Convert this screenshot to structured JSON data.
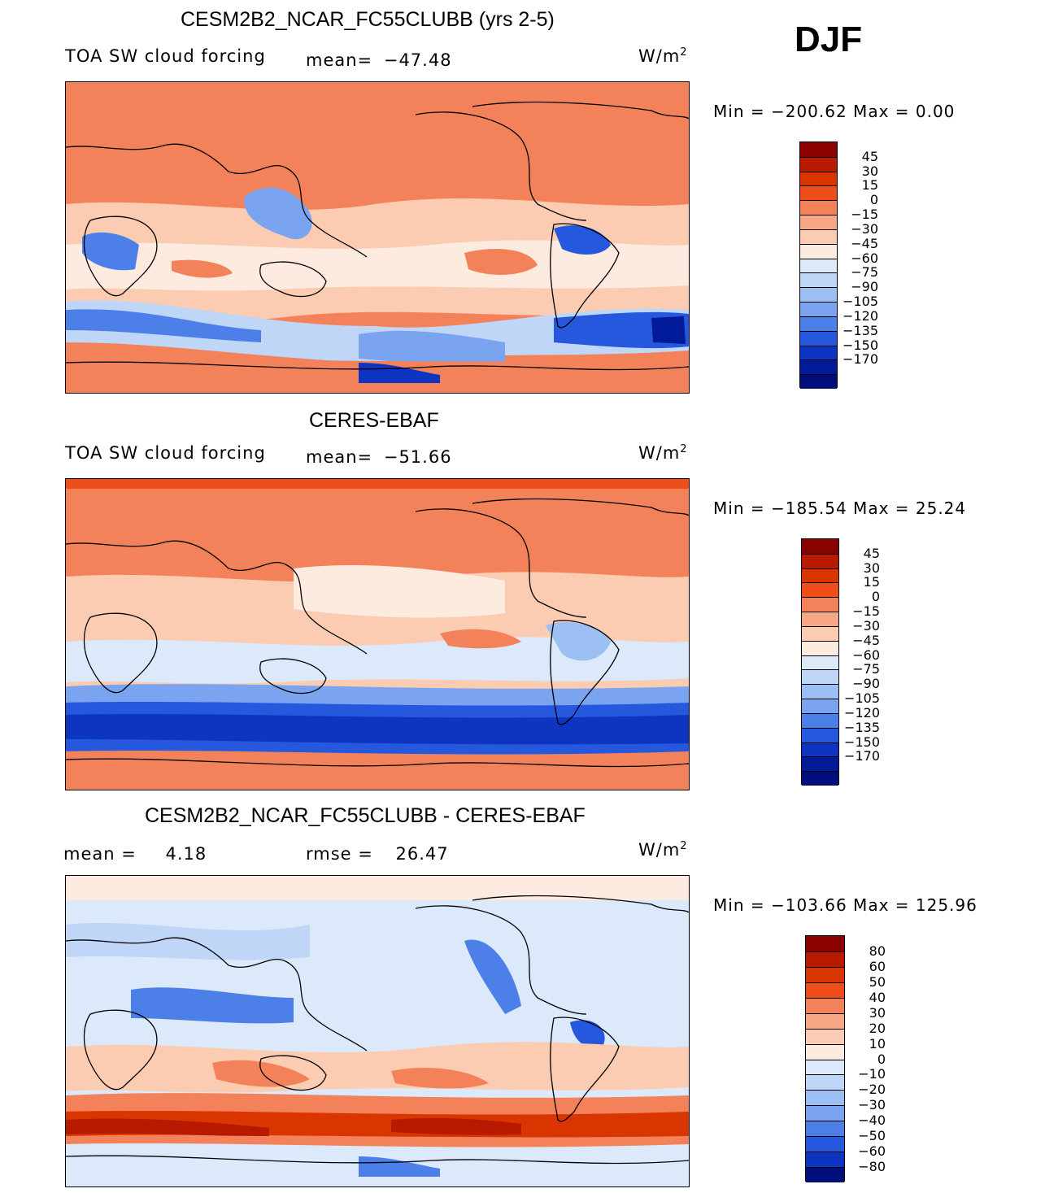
{
  "season": "DJF",
  "panels": [
    {
      "title": "CESM2B2_NCAR_FC55CLUBB (yrs 2-5)",
      "left_label": "TOA SW cloud forcing",
      "mid_label": "mean=",
      "mid_value": "−47.48",
      "units_base": "W/m",
      "units_exp": "2",
      "minmax": "Min  =  −200.62  Max  =     0.00",
      "colorbar_type": "abs"
    },
    {
      "title": "CERES-EBAF",
      "left_label": "TOA SW cloud forcing",
      "mid_label": "mean=",
      "mid_value": "−51.66",
      "units_base": "W/m",
      "units_exp": "2",
      "minmax": "Min  =  −185.54  Max  =    25.24",
      "colorbar_type": "abs"
    },
    {
      "title": "CESM2B2_NCAR_FC55CLUBB - CERES-EBAF",
      "left_label": "mean  =",
      "left_value": "4.18",
      "mid_label": "rmse  =",
      "mid_value": "26.47",
      "units_base": "W/m",
      "units_exp": "2",
      "minmax": "Min  =  −103.66  Max  =  125.96",
      "colorbar_type": "diff"
    }
  ],
  "chart_data": [
    {
      "type": "heatmap",
      "title": "CESM2B2_NCAR_FC55CLUBB (yrs 2-5)",
      "variable": "TOA SW cloud forcing",
      "units": "W/m2",
      "mean": -47.48,
      "min": -200.62,
      "max": 0.0,
      "levels": [
        "45",
        "30",
        "15",
        "0",
        "−15",
        "−30",
        "−45",
        "−60",
        "−75",
        "−90",
        "−105",
        "−120",
        "−135",
        "−150",
        "−170"
      ],
      "colors": [
        "#8b0000",
        "#b81a00",
        "#d83500",
        "#ee4f1a",
        "#f3825a",
        "#f7a784",
        "#fbccb1",
        "#fdebe0",
        "#dce9fa",
        "#bfd6f7",
        "#9cbff3",
        "#7aa4ef",
        "#4d7fe8",
        "#2658dd",
        "#0d35c2",
        "#001a9a",
        "#000d7a"
      ]
    },
    {
      "type": "heatmap",
      "title": "CERES-EBAF",
      "variable": "TOA SW cloud forcing",
      "units": "W/m2",
      "mean": -51.66,
      "min": -185.54,
      "max": 25.24,
      "levels": [
        "45",
        "30",
        "15",
        "0",
        "−15",
        "−30",
        "−45",
        "−60",
        "−75",
        "−90",
        "−105",
        "−120",
        "−135",
        "−150",
        "−170"
      ],
      "colors": [
        "#8b0000",
        "#b81a00",
        "#d83500",
        "#ee4f1a",
        "#f3825a",
        "#f7a784",
        "#fbccb1",
        "#fdebe0",
        "#dce9fa",
        "#bfd6f7",
        "#9cbff3",
        "#7aa4ef",
        "#4d7fe8",
        "#2658dd",
        "#0d35c2",
        "#001a9a",
        "#000d7a"
      ]
    },
    {
      "type": "heatmap",
      "title": "CESM2B2_NCAR_FC55CLUBB - CERES-EBAF",
      "units": "W/m2",
      "mean": 4.18,
      "rmse": 26.47,
      "min": -103.66,
      "max": 125.96,
      "levels": [
        "80",
        "60",
        "50",
        "40",
        "30",
        "20",
        "10",
        "0",
        "−10",
        "−20",
        "−30",
        "−40",
        "−50",
        "−60",
        "−80"
      ],
      "colors": [
        "#8b0000",
        "#b81a00",
        "#d83500",
        "#ee4f1a",
        "#f3825a",
        "#f7a784",
        "#fbccb1",
        "#fdebe0",
        "#dce9fa",
        "#bfd6f7",
        "#9cbff3",
        "#7aa4ef",
        "#4d7fe8",
        "#2658dd",
        "#0d35c2",
        "#000d7a"
      ]
    }
  ]
}
